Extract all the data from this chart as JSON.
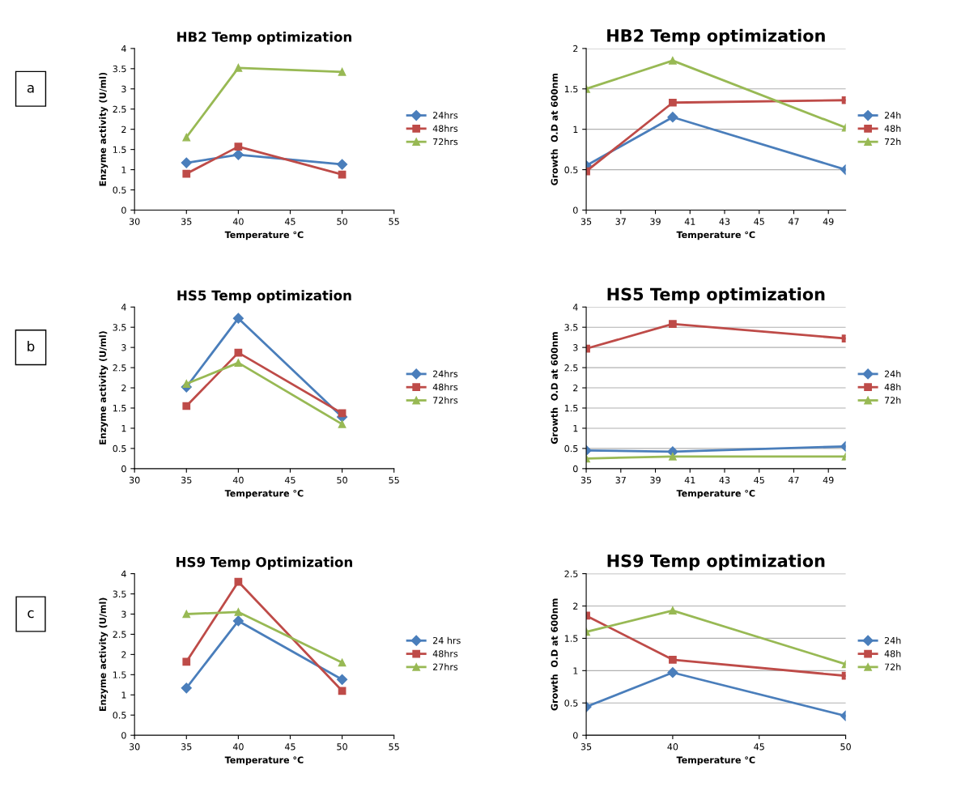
{
  "chart_data": [
    {
      "type": "line",
      "title": "HB2 Temp optimization",
      "xlabel": "Temperature °C",
      "ylabel": "Enzyme activity (U/ml)",
      "annotations": [
        "a"
      ],
      "x": [
        35,
        40,
        50
      ],
      "xlim": [
        30,
        55
      ],
      "xticks": [
        30,
        35,
        40,
        45,
        50,
        55
      ],
      "ylim": [
        0,
        4
      ],
      "yticks": [
        0,
        0.5,
        1,
        1.5,
        2,
        2.5,
        3,
        3.5,
        4
      ],
      "grid": false,
      "legend": "right",
      "series": [
        {
          "name": "24hrs",
          "color": "#4a7ebb",
          "marker": "diamond",
          "values": [
            1.17,
            1.37,
            1.13
          ]
        },
        {
          "name": "48hrs",
          "color": "#be4b48",
          "marker": "square",
          "values": [
            0.9,
            1.57,
            0.88
          ]
        },
        {
          "name": "72hrs",
          "color": "#98b954",
          "marker": "triangle",
          "values": [
            1.8,
            3.52,
            3.42
          ]
        }
      ]
    },
    {
      "type": "line",
      "title": "HB2 Temp optimization",
      "xlabel": "Temperature °C",
      "ylabel": "Growth  O.D at 600nm",
      "x": [
        35,
        40,
        50
      ],
      "xlim": [
        35,
        50
      ],
      "xticks": [
        35,
        37,
        39,
        41,
        43,
        45,
        47,
        49
      ],
      "ylim": [
        0,
        2
      ],
      "yticks": [
        0,
        0.5,
        1,
        1.5,
        2
      ],
      "grid": "y",
      "legend": "right",
      "series": [
        {
          "name": "24h",
          "color": "#4a7ebb",
          "marker": "diamond",
          "values": [
            0.55,
            1.15,
            0.5
          ]
        },
        {
          "name": "48h",
          "color": "#be4b48",
          "marker": "square",
          "values": [
            0.48,
            1.33,
            1.36
          ]
        },
        {
          "name": "72h",
          "color": "#98b954",
          "marker": "triangle",
          "values": [
            1.5,
            1.85,
            1.02
          ]
        }
      ]
    },
    {
      "type": "line",
      "title": "HS5 Temp optimization",
      "xlabel": "Temperature °C",
      "ylabel": "Enzyme activity (U/ml)",
      "annotations": [
        "b"
      ],
      "x": [
        35,
        40,
        50
      ],
      "xlim": [
        30,
        55
      ],
      "xticks": [
        30,
        35,
        40,
        45,
        50,
        55
      ],
      "ylim": [
        0,
        4
      ],
      "yticks": [
        0,
        0.5,
        1,
        1.5,
        2,
        2.5,
        3,
        3.5,
        4
      ],
      "grid": false,
      "legend": "right",
      "series": [
        {
          "name": "24hrs",
          "color": "#4a7ebb",
          "marker": "diamond",
          "values": [
            2.02,
            3.72,
            1.28
          ]
        },
        {
          "name": "48hrs",
          "color": "#be4b48",
          "marker": "square",
          "values": [
            1.55,
            2.87,
            1.37
          ]
        },
        {
          "name": "72hrs",
          "color": "#98b954",
          "marker": "triangle",
          "values": [
            2.1,
            2.62,
            1.1
          ]
        }
      ]
    },
    {
      "type": "line",
      "title": "HS5 Temp optimization",
      "xlabel": "Temperature °C",
      "ylabel": "Growth  O.D at 600nm",
      "x": [
        35,
        40,
        50
      ],
      "xlim": [
        35,
        50
      ],
      "xticks": [
        35,
        37,
        39,
        41,
        43,
        45,
        47,
        49
      ],
      "ylim": [
        0,
        4
      ],
      "yticks": [
        0,
        0.5,
        1,
        1.5,
        2,
        2.5,
        3,
        3.5,
        4
      ],
      "grid": "y",
      "legend": "right",
      "series": [
        {
          "name": "24h",
          "color": "#4a7ebb",
          "marker": "diamond",
          "values": [
            0.45,
            0.42,
            0.55
          ]
        },
        {
          "name": "48h",
          "color": "#be4b48",
          "marker": "square",
          "values": [
            2.97,
            3.58,
            3.22
          ]
        },
        {
          "name": "72h",
          "color": "#98b954",
          "marker": "triangle",
          "values": [
            0.25,
            0.3,
            0.3
          ]
        }
      ]
    },
    {
      "type": "line",
      "title": "HS9 Temp Optimization",
      "xlabel": "Temperature °C",
      "ylabel": "Enzyme activity (U/ml)",
      "annotations": [
        "c"
      ],
      "x": [
        35,
        40,
        50
      ],
      "xlim": [
        30,
        55
      ],
      "xticks": [
        30,
        35,
        40,
        45,
        50,
        55
      ],
      "ylim": [
        0,
        4
      ],
      "yticks": [
        0,
        0.5,
        1,
        1.5,
        2,
        2.5,
        3,
        3.5,
        4
      ],
      "grid": false,
      "legend": "right",
      "series": [
        {
          "name": "24 hrs",
          "color": "#4a7ebb",
          "marker": "diamond",
          "values": [
            1.17,
            2.83,
            1.38
          ]
        },
        {
          "name": "48hrs",
          "color": "#be4b48",
          "marker": "square",
          "values": [
            1.82,
            3.8,
            1.1
          ]
        },
        {
          "name": "27hrs",
          "color": "#98b954",
          "marker": "triangle",
          "values": [
            3.0,
            3.05,
            1.8
          ]
        }
      ]
    },
    {
      "type": "line",
      "title": "HS9 Temp optimization",
      "xlabel": "Temperature °C",
      "ylabel": "Growth  O.D at 600nm",
      "x": [
        35,
        40,
        50
      ],
      "xlim": [
        35,
        50
      ],
      "xticks": [
        35,
        40,
        45,
        50
      ],
      "ylim": [
        0,
        2.5
      ],
      "yticks": [
        0,
        0.5,
        1,
        1.5,
        2,
        2.5
      ],
      "grid": "y",
      "legend": "right",
      "series": [
        {
          "name": "24h",
          "color": "#4a7ebb",
          "marker": "diamond",
          "values": [
            0.44,
            0.97,
            0.3
          ]
        },
        {
          "name": "48h",
          "color": "#be4b48",
          "marker": "square",
          "values": [
            1.85,
            1.17,
            0.92
          ]
        },
        {
          "name": "72h",
          "color": "#98b954",
          "marker": "triangle",
          "values": [
            1.6,
            1.93,
            1.1
          ]
        }
      ]
    }
  ]
}
